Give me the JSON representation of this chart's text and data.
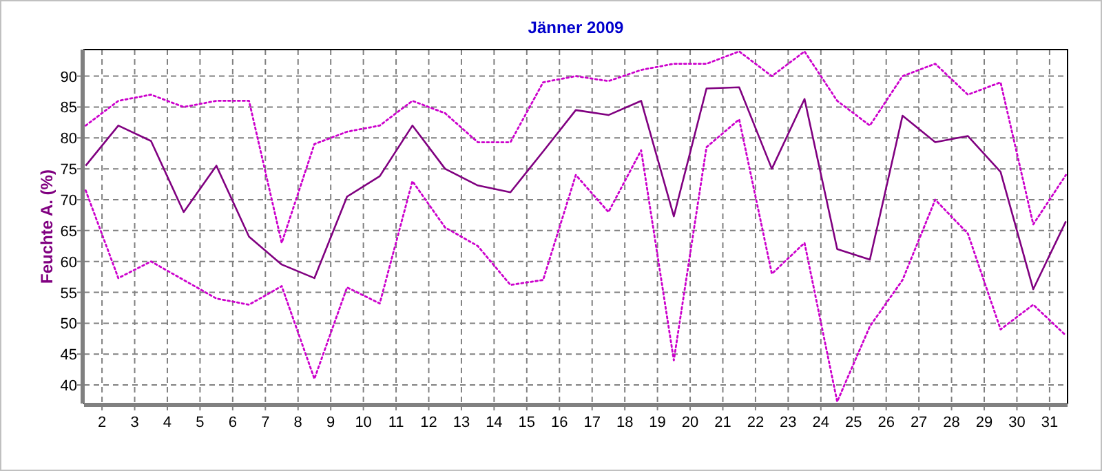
{
  "chart_data": {
    "type": "line",
    "title": "Jänner 2009",
    "ylabel": "Feuchte A. (%)",
    "x": [
      1.5,
      2.5,
      3.5,
      4.5,
      5.5,
      6.5,
      7.5,
      8.5,
      9.5,
      10.5,
      11.5,
      12.5,
      13.5,
      14.5,
      15.5,
      16.5,
      17.5,
      18.5,
      19.5,
      20.5,
      21.5,
      22.5,
      23.5,
      24.5,
      25.5,
      26.5,
      27.5,
      28.5,
      29.5,
      30.5,
      31.5
    ],
    "series": [
      {
        "color": "#cc00cc",
        "line_style": "dotted",
        "values": [
          82,
          86,
          87,
          85,
          86,
          86,
          63,
          79,
          81,
          82,
          86,
          84,
          79.3,
          79.3,
          89,
          90,
          89.2,
          91,
          92,
          92,
          94,
          90,
          94,
          86,
          82,
          90,
          92,
          87,
          89,
          66,
          74
        ]
      },
      {
        "color": "#800080",
        "line_style": "solid",
        "values": [
          75.5,
          82,
          79.5,
          68,
          75.5,
          64,
          59.5,
          57.3,
          70.5,
          73.8,
          82,
          75,
          72.3,
          71.2,
          77.8,
          84.5,
          83.7,
          86,
          67.3,
          88,
          88.2,
          75,
          86.3,
          62,
          60.3,
          83.6,
          79.3,
          80.3,
          74.5,
          55.5,
          66.5
        ]
      },
      {
        "color": "#cc00cc",
        "line_style": "dotted",
        "values": [
          71.5,
          57.3,
          60,
          57,
          54,
          53,
          56,
          41,
          55.8,
          53.2,
          73,
          65.5,
          62.5,
          56.2,
          57,
          74,
          68,
          78,
          44,
          78.5,
          83,
          58,
          63,
          37.3,
          49.5,
          57,
          70,
          64.5,
          49,
          53,
          48
        ]
      }
    ],
    "xlim": [
      1.45,
      31.55
    ],
    "xticks": [
      2,
      3,
      4,
      5,
      6,
      7,
      8,
      9,
      10,
      11,
      12,
      13,
      14,
      15,
      16,
      17,
      18,
      19,
      20,
      21,
      22,
      23,
      24,
      25,
      26,
      27,
      28,
      29,
      30,
      31
    ],
    "ylim": [
      37,
      94.3
    ],
    "yticks": [
      40,
      45,
      50,
      55,
      60,
      65,
      70,
      75,
      80,
      85,
      90
    ],
    "grid": true
  }
}
